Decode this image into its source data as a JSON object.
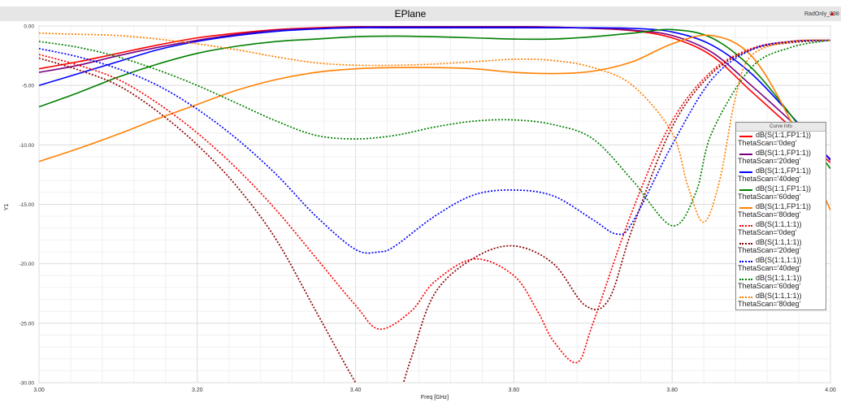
{
  "chart_data": {
    "type": "line",
    "title": "EPlane",
    "tag": "RadOnly_098",
    "xlabel": "Freq [GHz]",
    "ylabel": "Y1",
    "xlim": [
      3.0,
      4.0
    ],
    "ylim": [
      -30.0,
      0.0
    ],
    "x_ticks": [
      3.0,
      3.2,
      3.4,
      3.6,
      3.8,
      4.0
    ],
    "x_tick_labels": [
      "3.00",
      "3.20",
      "3.40",
      "3.60",
      "3.80",
      "4.00"
    ],
    "y_ticks": [
      0,
      -5,
      -10,
      -15,
      -20,
      -25,
      -30
    ],
    "y_tick_labels": [
      "0.00",
      "-5.00",
      "-10.00",
      "-15.00",
      "-20.00",
      "-25.00",
      "-30.00"
    ],
    "grid": true,
    "legend_title": "Curve Info",
    "legend_position": "right",
    "series": [
      {
        "name": "dB(S(1:1,FP1:1))",
        "sub": "ThetaScan='0deg'",
        "color": "#ff0000",
        "dash": "solid",
        "x": [
          3.0,
          3.05,
          3.1,
          3.15,
          3.2,
          3.25,
          3.3,
          3.35,
          3.4,
          3.45,
          3.5,
          3.55,
          3.6,
          3.65,
          3.7,
          3.75,
          3.8,
          3.85,
          3.9,
          3.95,
          4.0
        ],
        "y": [
          -3.6,
          -3.0,
          -2.3,
          -1.6,
          -1.0,
          -0.6,
          -0.3,
          -0.15,
          -0.05,
          -0.05,
          -0.05,
          -0.05,
          -0.05,
          -0.1,
          -0.2,
          -0.4,
          -1.0,
          -2.5,
          -5.5,
          -8.5,
          -11.5
        ]
      },
      {
        "name": "dB(S(1:1,FP1:1))",
        "sub": "ThetaScan='20deg'",
        "color": "#7a0080",
        "dash": "solid",
        "x": [
          3.0,
          3.05,
          3.1,
          3.15,
          3.2,
          3.25,
          3.3,
          3.35,
          3.4,
          3.45,
          3.5,
          3.55,
          3.6,
          3.65,
          3.7,
          3.75,
          3.8,
          3.85,
          3.9,
          3.95,
          4.0
        ],
        "y": [
          -3.9,
          -3.3,
          -2.5,
          -1.8,
          -1.2,
          -0.7,
          -0.35,
          -0.2,
          -0.08,
          -0.05,
          -0.05,
          -0.05,
          -0.05,
          -0.1,
          -0.2,
          -0.35,
          -0.8,
          -2.2,
          -5.0,
          -8.0,
          -11.2
        ]
      },
      {
        "name": "dB(S(1:1,FP1:1))",
        "sub": "ThetaScan='40deg'",
        "color": "#0000ff",
        "dash": "solid",
        "x": [
          3.0,
          3.05,
          3.1,
          3.15,
          3.2,
          3.25,
          3.3,
          3.35,
          3.4,
          3.45,
          3.5,
          3.55,
          3.6,
          3.65,
          3.7,
          3.75,
          3.8,
          3.85,
          3.9,
          3.95,
          4.0
        ],
        "y": [
          -5.0,
          -4.0,
          -3.0,
          -2.0,
          -1.3,
          -0.8,
          -0.45,
          -0.25,
          -0.15,
          -0.15,
          -0.15,
          -0.15,
          -0.15,
          -0.15,
          -0.15,
          -0.2,
          -0.5,
          -1.6,
          -4.0,
          -7.5,
          -11.3
        ]
      },
      {
        "name": "dB(S(1:1,FP1:1))",
        "sub": "ThetaScan='60deg'",
        "color": "#008000",
        "dash": "solid",
        "x": [
          3.0,
          3.05,
          3.1,
          3.15,
          3.2,
          3.25,
          3.3,
          3.35,
          3.4,
          3.45,
          3.5,
          3.55,
          3.6,
          3.65,
          3.7,
          3.75,
          3.8,
          3.85,
          3.9,
          3.95,
          4.0
        ],
        "y": [
          -6.8,
          -5.6,
          -4.3,
          -3.2,
          -2.3,
          -1.7,
          -1.3,
          -1.1,
          -0.9,
          -0.85,
          -0.9,
          -1.0,
          -1.1,
          -1.1,
          -0.9,
          -0.6,
          -0.3,
          -1.0,
          -3.5,
          -7.5,
          -12.0
        ]
      },
      {
        "name": "dB(S(1:1,FP1:1))",
        "sub": "ThetaScan='80deg'",
        "color": "#ff8000",
        "dash": "solid",
        "x": [
          3.0,
          3.05,
          3.1,
          3.15,
          3.2,
          3.25,
          3.3,
          3.35,
          3.4,
          3.45,
          3.5,
          3.55,
          3.6,
          3.65,
          3.7,
          3.75,
          3.8,
          3.85,
          3.9,
          3.95,
          4.0
        ],
        "y": [
          -11.4,
          -10.3,
          -9.1,
          -7.8,
          -6.6,
          -5.4,
          -4.5,
          -3.9,
          -3.6,
          -3.5,
          -3.5,
          -3.6,
          -3.9,
          -4.0,
          -3.8,
          -3.0,
          -1.5,
          -0.8,
          -2.5,
          -8.0,
          -15.5
        ]
      },
      {
        "name": "dB(S(1:1,1:1))",
        "sub": "ThetaScan='0deg'",
        "color": "#ff0000",
        "dash": "dotted",
        "x": [
          3.0,
          3.05,
          3.1,
          3.15,
          3.2,
          3.25,
          3.3,
          3.35,
          3.4,
          3.43,
          3.47,
          3.5,
          3.55,
          3.6,
          3.63,
          3.65,
          3.68,
          3.7,
          3.75,
          3.8,
          3.85,
          3.9,
          3.95,
          4.0
        ],
        "y": [
          -2.4,
          -3.3,
          -4.5,
          -6.5,
          -9.0,
          -12.0,
          -15.5,
          -19.5,
          -23.5,
          -25.5,
          -24.0,
          -21.5,
          -19.6,
          -21.0,
          -24.0,
          -26.5,
          -28.3,
          -25.0,
          -15.5,
          -8.0,
          -3.8,
          -1.9,
          -1.3,
          -1.2
        ]
      },
      {
        "name": "dB(S(1:1,1:1))",
        "sub": "ThetaScan='20deg'",
        "color": "#8b0000",
        "dash": "dotted",
        "x": [
          3.0,
          3.05,
          3.1,
          3.15,
          3.2,
          3.25,
          3.3,
          3.35,
          3.4,
          3.43,
          3.45,
          3.47,
          3.5,
          3.55,
          3.6,
          3.65,
          3.69,
          3.72,
          3.75,
          3.8,
          3.85,
          3.9,
          3.95,
          4.0
        ],
        "y": [
          -2.7,
          -3.7,
          -5.0,
          -7.2,
          -10.0,
          -13.5,
          -18.0,
          -24.0,
          -30.0,
          -33.0,
          -32.0,
          -28.0,
          -22.5,
          -19.5,
          -18.5,
          -20.0,
          -23.5,
          -23.0,
          -17.0,
          -8.5,
          -4.0,
          -2.0,
          -1.4,
          -1.2
        ]
      },
      {
        "name": "dB(S(1:1,1:1))",
        "sub": "ThetaScan='40deg'",
        "color": "#0000ff",
        "dash": "dotted",
        "x": [
          3.0,
          3.05,
          3.1,
          3.15,
          3.2,
          3.25,
          3.3,
          3.35,
          3.4,
          3.43,
          3.45,
          3.5,
          3.55,
          3.6,
          3.65,
          3.7,
          3.73,
          3.75,
          3.8,
          3.85,
          3.9,
          3.95,
          4.0
        ],
        "y": [
          -1.9,
          -2.6,
          -3.6,
          -5.0,
          -7.0,
          -9.5,
          -12.5,
          -16.0,
          -18.8,
          -19.0,
          -18.5,
          -16.0,
          -14.2,
          -13.8,
          -14.3,
          -16.3,
          -17.5,
          -16.5,
          -10.0,
          -4.5,
          -2.0,
          -1.3,
          -1.2
        ]
      },
      {
        "name": "dB(S(1:1,1:1))",
        "sub": "ThetaScan='60deg'",
        "color": "#008000",
        "dash": "dotted",
        "x": [
          3.0,
          3.05,
          3.1,
          3.15,
          3.2,
          3.25,
          3.3,
          3.35,
          3.4,
          3.45,
          3.5,
          3.55,
          3.6,
          3.65,
          3.7,
          3.75,
          3.8,
          3.83,
          3.85,
          3.9,
          3.95,
          4.0
        ],
        "y": [
          -1.3,
          -1.8,
          -2.6,
          -3.7,
          -5.0,
          -6.5,
          -8.0,
          -9.2,
          -9.5,
          -9.2,
          -8.5,
          -8.0,
          -7.9,
          -8.3,
          -9.5,
          -13.0,
          -16.8,
          -14.0,
          -9.0,
          -3.5,
          -1.8,
          -1.2
        ]
      },
      {
        "name": "dB(S(1:1,1:1))",
        "sub": "ThetaScan='80deg'",
        "color": "#ff8000",
        "dash": "dotted",
        "x": [
          3.0,
          3.05,
          3.1,
          3.15,
          3.2,
          3.25,
          3.3,
          3.35,
          3.4,
          3.45,
          3.5,
          3.55,
          3.6,
          3.65,
          3.7,
          3.75,
          3.8,
          3.82,
          3.84,
          3.86,
          3.88,
          3.9,
          3.95,
          4.0
        ],
        "y": [
          -0.6,
          -0.7,
          -0.8,
          -1.1,
          -1.5,
          -2.0,
          -2.6,
          -3.1,
          -3.3,
          -3.3,
          -3.2,
          -3.0,
          -2.8,
          -2.9,
          -3.5,
          -5.0,
          -9.0,
          -13.5,
          -16.5,
          -13.0,
          -6.0,
          -2.5,
          -1.3,
          -1.2
        ]
      }
    ]
  }
}
